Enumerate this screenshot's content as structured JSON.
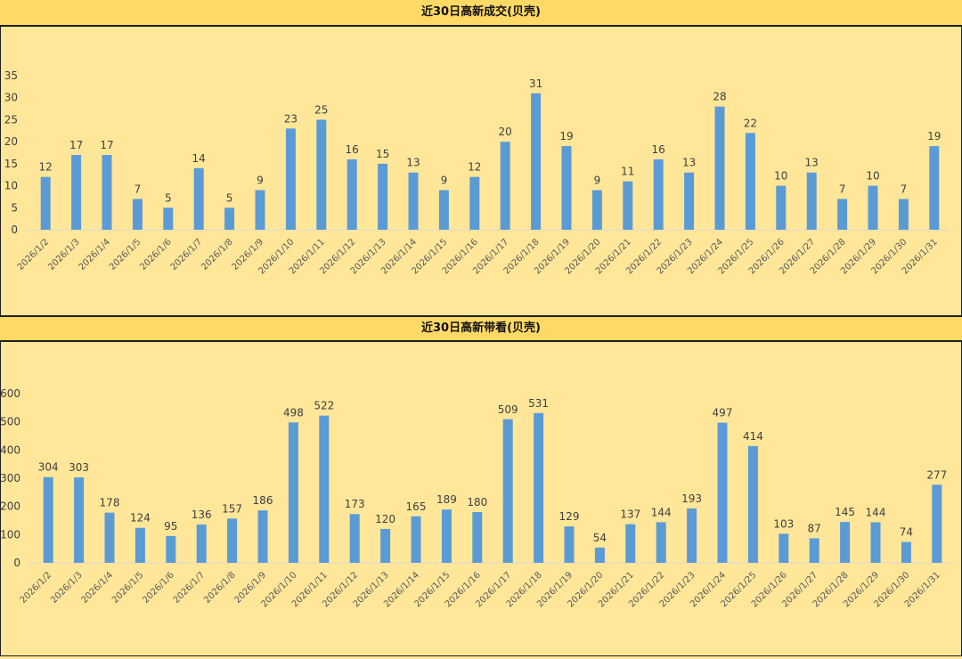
{
  "chart_data": [
    {
      "type": "bar",
      "title": "近30日高新成交(贝壳)",
      "categories": [
        "2026/1/2",
        "2026/1/3",
        "2026/1/4",
        "2026/1/5",
        "2026/1/6",
        "2026/1/7",
        "2026/1/8",
        "2026/1/9",
        "2026/1/10",
        "2026/1/11",
        "2026/1/12",
        "2026/1/13",
        "2026/1/14",
        "2026/1/15",
        "2026/1/16",
        "2026/1/17",
        "2026/1/18",
        "2026/1/19",
        "2026/1/20",
        "2026/1/21",
        "2026/1/22",
        "2026/1/23",
        "2026/1/24",
        "2026/1/25",
        "2026/1/26",
        "2026/1/27",
        "2026/1/28",
        "2026/1/29",
        "2026/1/30",
        "2026/1/31"
      ],
      "values": [
        12,
        17,
        17,
        7,
        5,
        14,
        5,
        9,
        23,
        25,
        16,
        15,
        13,
        9,
        12,
        20,
        31,
        19,
        9,
        11,
        16,
        13,
        28,
        22,
        10,
        13,
        7,
        10,
        7,
        19
      ],
      "yticks": [
        0,
        5,
        10,
        15,
        20,
        25,
        30,
        35
      ],
      "ylim": [
        0,
        35
      ],
      "bar_color": "#5B9BD5",
      "grid": false
    },
    {
      "type": "bar",
      "title": "近30日高新带看(贝壳)",
      "categories": [
        "2026/1/2",
        "2026/1/3",
        "2026/1/4",
        "2026/1/5",
        "2026/1/6",
        "2026/1/7",
        "2026/1/8",
        "2026/1/9",
        "2026/1/10",
        "2026/1/11",
        "2026/1/12",
        "2026/1/13",
        "2026/1/14",
        "2026/1/15",
        "2026/1/16",
        "2026/1/17",
        "2026/1/18",
        "2026/1/19",
        "2026/1/20",
        "2026/1/21",
        "2026/1/22",
        "2026/1/23",
        "2026/1/24",
        "2026/1/25",
        "2026/1/26",
        "2026/1/27",
        "2026/1/28",
        "2026/1/29",
        "2026/1/30",
        "2026/1/31"
      ],
      "values": [
        304,
        303,
        178,
        124,
        95,
        136,
        157,
        186,
        498,
        522,
        173,
        120,
        165,
        189,
        180,
        509,
        531,
        129,
        54,
        137,
        144,
        193,
        497,
        414,
        103,
        87,
        145,
        144,
        74,
        277
      ],
      "yticks": [
        0,
        100,
        200,
        300,
        400,
        500,
        600
      ],
      "ylim": [
        0,
        600
      ],
      "bar_color": "#5B9BD5",
      "grid": false
    }
  ]
}
